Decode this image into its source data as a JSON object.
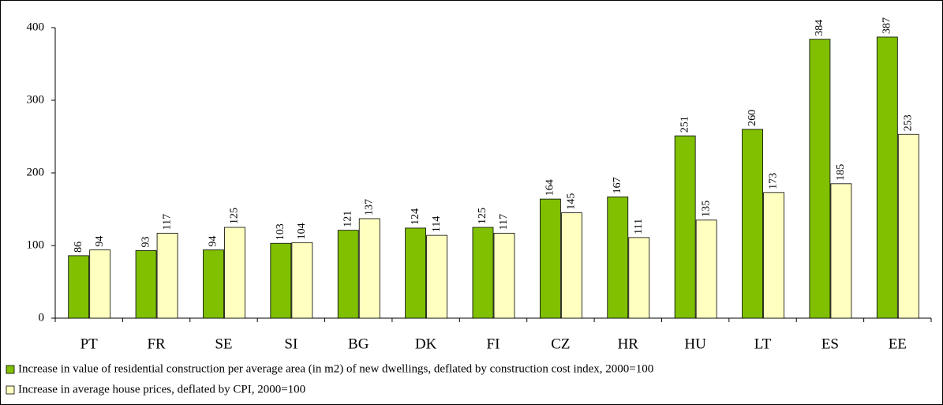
{
  "chart_data": {
    "type": "bar",
    "categories": [
      "PT",
      "FR",
      "SE",
      "SI",
      "BG",
      "DK",
      "FI",
      "CZ",
      "HR",
      "HU",
      "LT",
      "ES",
      "EE"
    ],
    "series": [
      {
        "name": "Increase in value of residential construction per average area (in m2) of new dwellings, deflated by construction cost index, 2000=100",
        "color": "#80c000",
        "values": [
          86,
          93,
          94,
          103,
          121,
          124,
          125,
          164,
          167,
          251,
          260,
          384,
          387
        ]
      },
      {
        "name": "Increase in average house prices, deflated by CPI, 2000=100",
        "color": "#ffffc0",
        "values": [
          94,
          117,
          125,
          104,
          137,
          114,
          117,
          145,
          111,
          135,
          173,
          185,
          253
        ]
      }
    ],
    "ylim": [
      0,
      400
    ],
    "yticks": [
      0,
      100,
      200,
      300,
      400
    ],
    "grid": false
  }
}
